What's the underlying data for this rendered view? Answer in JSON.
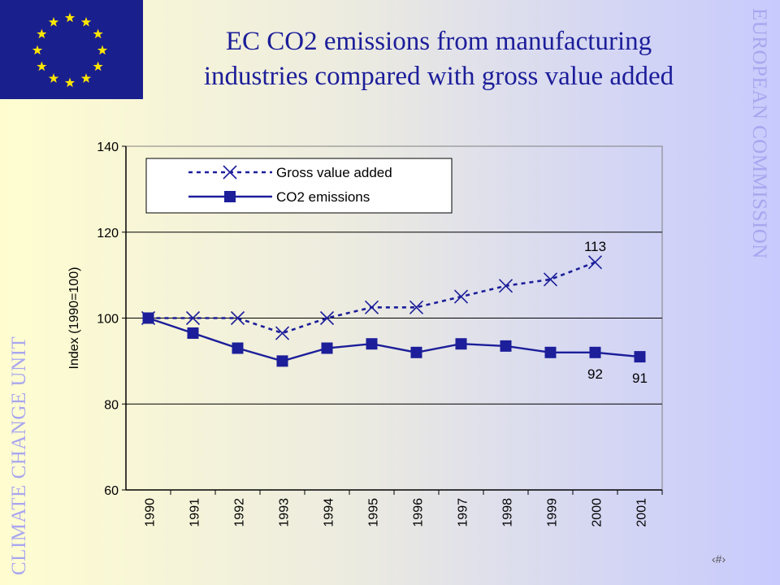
{
  "slide": {
    "title_line1": "EC CO2 emissions from manufacturing",
    "title_line2": "industries compared with gross value added",
    "side_right": "EUROPEAN COMMISSION",
    "side_left": "CLIMATE CHANGE UNIT",
    "slide_number": "‹#›"
  },
  "flag": {
    "name": "eu-flag",
    "background": "#1a1f8e",
    "star_color": "#ffe600",
    "stars": 12
  },
  "chart_data": {
    "type": "line",
    "title": "",
    "xlabel": "",
    "ylabel": "Index (1990=100)",
    "categories": [
      "1990",
      "1991",
      "1992",
      "1993",
      "1994",
      "1995",
      "1996",
      "1997",
      "1998",
      "1999",
      "2000",
      "2001"
    ],
    "ylim": [
      60,
      140
    ],
    "yticks": [
      "60",
      "80",
      "100",
      "120",
      "140"
    ],
    "grid": true,
    "legend_position": "top-left",
    "series": [
      {
        "name": "Gross value added",
        "color": "#1c1e9a",
        "style": "dotted",
        "marker": "x",
        "values": [
          100,
          100,
          100,
          96.5,
          100,
          102.5,
          102.5,
          105,
          107.5,
          109,
          113,
          null
        ]
      },
      {
        "name": "CO2 emissions",
        "color": "#1c1e9a",
        "style": "solid",
        "marker": "square",
        "values": [
          100,
          96.5,
          93,
          90,
          93,
          94,
          92,
          94,
          93.5,
          92,
          92,
          91
        ]
      }
    ],
    "annotations": [
      {
        "series": 0,
        "index": 10,
        "text": "113",
        "place": "above"
      },
      {
        "series": 1,
        "index": 10,
        "text": "92",
        "place": "below"
      },
      {
        "series": 1,
        "index": 11,
        "text": "91",
        "place": "below"
      }
    ]
  }
}
